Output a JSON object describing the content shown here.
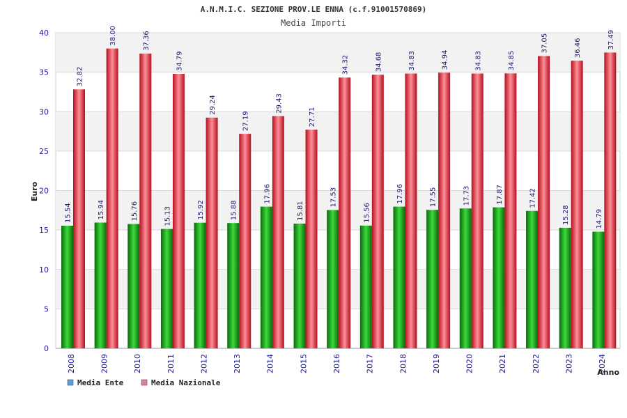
{
  "chart_data": {
    "type": "bar",
    "title": "A.N.M.I.C. SEZIONE PROV.LE ENNA (c.f.91001570869)",
    "subtitle": "Media Importi",
    "xlabel": "Anno",
    "ylabel": "Euro",
    "ylim": [
      0,
      40
    ],
    "yticks": [
      0,
      5,
      10,
      15,
      20,
      25,
      30,
      35,
      40
    ],
    "categories": [
      "2008",
      "2009",
      "2010",
      "2011",
      "2012",
      "2013",
      "2014",
      "2015",
      "2016",
      "2017",
      "2018",
      "2019",
      "2020",
      "2021",
      "2022",
      "2023",
      "2024"
    ],
    "series": [
      {
        "name": "Media Ente",
        "color": "#1fae1f",
        "values": [
          15.54,
          15.94,
          15.76,
          15.13,
          15.92,
          15.88,
          17.96,
          15.81,
          17.53,
          15.56,
          17.96,
          17.55,
          17.73,
          17.87,
          17.42,
          15.28,
          14.79
        ]
      },
      {
        "name": "Media Nazionale",
        "color": "#e8283a",
        "values": [
          32.82,
          38.0,
          37.36,
          34.79,
          29.24,
          27.19,
          29.43,
          27.71,
          34.32,
          34.68,
          34.83,
          34.94,
          34.83,
          34.85,
          37.05,
          36.46,
          37.49
        ]
      }
    ],
    "data_labels": [
      [
        "15.54",
        "15.94",
        "15.76",
        "15.13",
        "15.92",
        "15.88",
        "17.96",
        "15.81",
        "17.53",
        "15.56",
        "17.96",
        "17.55",
        "17.73",
        "17.87",
        "17.42",
        "15.28",
        "14.79"
      ],
      [
        "32.82",
        "38.00",
        "37.36",
        "34.79",
        "29.24",
        "27.19",
        "29.43",
        "27.71",
        "34.32",
        "34.68",
        "34.83",
        "34.94",
        "34.83",
        "34.85",
        "37.05",
        "36.46",
        "37.49"
      ]
    ],
    "legend": {
      "position": "bottom-left",
      "entries": [
        {
          "label": "Media Ente",
          "swatch": "#5b9be0"
        },
        {
          "label": "Media Nazionale",
          "swatch": "#e07aa8"
        }
      ]
    },
    "grid": true,
    "band_color": "#f2f2f2"
  }
}
